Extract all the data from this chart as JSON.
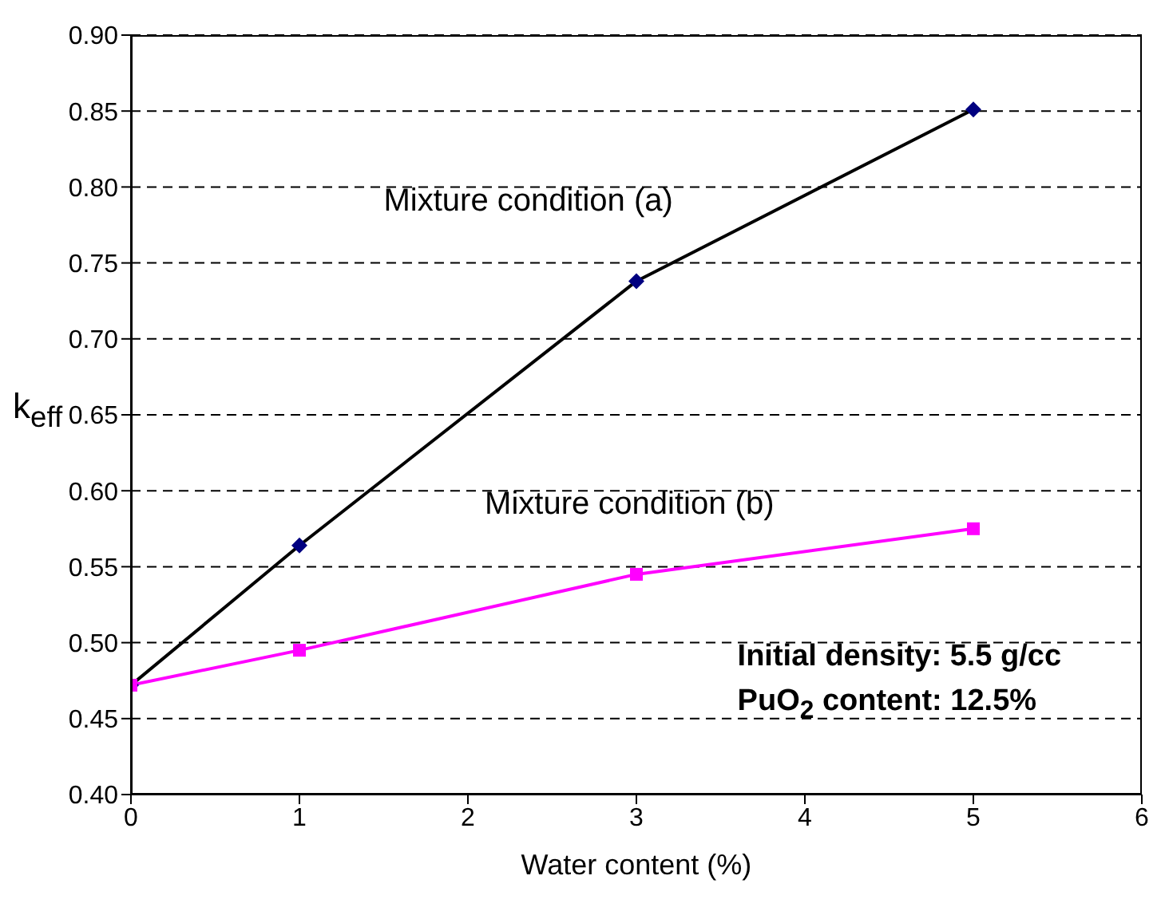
{
  "chart_data": {
    "type": "line",
    "xlabel": "Water content (%)",
    "ylabel": "k$_{eff}$",
    "x": [
      0,
      1,
      3,
      5
    ],
    "series": [
      {
        "name": "Mixture condition (a)",
        "color": "#000080",
        "marker": "diamond",
        "values": [
          0.472,
          0.564,
          0.738,
          0.851
        ]
      },
      {
        "name": "Mixture condition (b)",
        "color": "#ff00ff",
        "marker": "square",
        "values": [
          0.472,
          0.495,
          0.545,
          0.575
        ]
      }
    ],
    "xlim": [
      0,
      6
    ],
    "xticks": [
      0,
      1,
      2,
      3,
      4,
      5,
      6
    ],
    "ylim": [
      0.4,
      0.9
    ],
    "yticks": [
      {
        "value": 0.4,
        "label": "0.40"
      },
      {
        "value": 0.45,
        "label": "0.45"
      },
      {
        "value": 0.5,
        "label": "0.50"
      },
      {
        "value": 0.55,
        "label": "0.55"
      },
      {
        "value": 0.6,
        "label": "0.60"
      },
      {
        "value": 0.65,
        "label": "0.65"
      },
      {
        "value": 0.7,
        "label": "0.70"
      },
      {
        "value": 0.75,
        "label": "0.75"
      },
      {
        "value": 0.8,
        "label": "0.80"
      },
      {
        "value": 0.85,
        "label": "0.85"
      },
      {
        "value": 0.9,
        "label": "0.90"
      }
    ],
    "grid": "y",
    "legend": false,
    "line_style": "solid",
    "annotations": [
      "Initial density: 5.5 g/cc",
      "PuO$_{2}$ content: 12.5%"
    ]
  }
}
